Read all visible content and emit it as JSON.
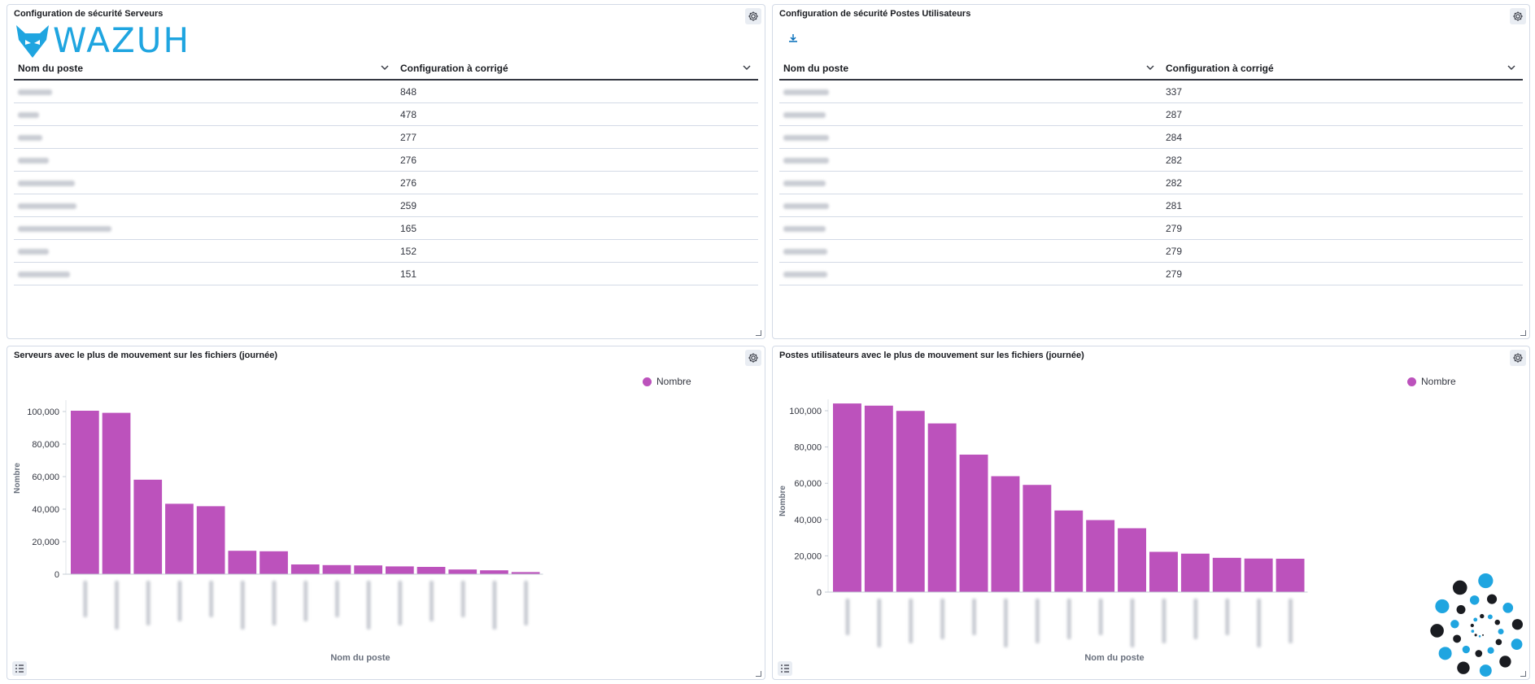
{
  "panels": {
    "servers_config": {
      "title": "Configuration de sécurité Serveurs",
      "logo_text": "WAZUH",
      "columns": [
        "Nom du poste",
        "Configuration à corrigé"
      ],
      "rows": [
        {
          "name_width": 42,
          "value": "848"
        },
        {
          "name_width": 26,
          "value": "478"
        },
        {
          "name_width": 30,
          "value": "277"
        },
        {
          "name_width": 38,
          "value": "276"
        },
        {
          "name_width": 70,
          "value": "276"
        },
        {
          "name_width": 72,
          "value": "259"
        },
        {
          "name_width": 115,
          "value": "165"
        },
        {
          "name_width": 38,
          "value": "152"
        },
        {
          "name_width": 64,
          "value": "151"
        }
      ]
    },
    "workstations_config": {
      "title": "Configuration de sécurité Postes Utilisateurs",
      "columns": [
        "Nom du poste",
        "Configuration à corrigé"
      ],
      "rows": [
        {
          "name_width": 56,
          "value": "337"
        },
        {
          "name_width": 52,
          "value": "287"
        },
        {
          "name_width": 56,
          "value": "284"
        },
        {
          "name_width": 56,
          "value": "282"
        },
        {
          "name_width": 52,
          "value": "282"
        },
        {
          "name_width": 56,
          "value": "281"
        },
        {
          "name_width": 52,
          "value": "279"
        },
        {
          "name_width": 54,
          "value": "279"
        },
        {
          "name_width": 54,
          "value": "279"
        }
      ]
    },
    "servers_chart": {
      "title": "Serveurs avec le plus de mouvement sur les fichiers (journée)"
    },
    "workstations_chart": {
      "title": "Postes utilisateurs avec le plus de mouvement sur les fichiers (journée)"
    }
  },
  "colors": {
    "bar": "#bc52bc",
    "accent": "#006bb8",
    "wazuh_blue": "#1fa5e0"
  },
  "chart_data": [
    {
      "type": "bar",
      "title": "Serveurs avec le plus de mouvement sur les fichiers (journée)",
      "xlabel": "Nom du poste",
      "ylabel": "Nombre",
      "ylim": [
        0,
        100000
      ],
      "yticks": [
        "0",
        "20,000",
        "40,000",
        "60,000",
        "80,000",
        "100,000"
      ],
      "grid": false,
      "legend_position": "top-right",
      "series": [
        {
          "name": "Nombre",
          "values": [
            100500,
            99200,
            58100,
            43300,
            41800,
            14400,
            14100,
            6000,
            5600,
            5400,
            4800,
            4500,
            2900,
            2400,
            1300
          ]
        }
      ]
    },
    {
      "type": "bar",
      "title": "Postes utilisateurs avec le plus de mouvement sur les fichiers (journée)",
      "xlabel": "Nom du poste",
      "ylabel": "Nombre",
      "ylim": [
        0,
        100000
      ],
      "yticks": [
        "0",
        "20,000",
        "40,000",
        "60,000",
        "80,000",
        "100,000"
      ],
      "grid": false,
      "legend_position": "top-right",
      "series": [
        {
          "name": "Nombre",
          "values": [
            104000,
            102800,
            99900,
            93000,
            75800,
            63900,
            59100,
            45000,
            39700,
            35200,
            22200,
            21200,
            18900,
            18500,
            18400
          ]
        }
      ]
    }
  ]
}
